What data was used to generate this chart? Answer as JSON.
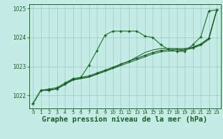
{
  "bg_color": "#c5ece4",
  "grid_color": "#9fcfca",
  "line_color_dark": "#1a5c28",
  "line_color_med": "#2e7d3c",
  "xlabel": "Graphe pression niveau de la mer (hPa)",
  "xlabel_fontsize": 7.5,
  "ylim": [
    1021.55,
    1025.15
  ],
  "xlim": [
    -0.5,
    23.5
  ],
  "yticks": [
    1022,
    1023,
    1024,
    1025
  ],
  "xticks": [
    0,
    1,
    2,
    3,
    4,
    5,
    6,
    7,
    8,
    9,
    10,
    11,
    12,
    13,
    14,
    15,
    16,
    17,
    18,
    19,
    20,
    21,
    22,
    23
  ],
  "curve1_x": [
    0,
    1,
    2,
    3,
    4,
    5,
    6,
    7,
    8,
    9,
    10,
    11,
    12,
    13,
    14,
    15,
    16,
    17,
    18,
    19,
    20,
    21,
    22,
    23
  ],
  "curve1_y": [
    1021.72,
    1022.18,
    1022.22,
    1022.27,
    1022.43,
    1022.58,
    1022.62,
    1023.05,
    1023.55,
    1024.08,
    1024.22,
    1024.22,
    1024.22,
    1024.22,
    1024.05,
    1024.0,
    1023.75,
    1023.58,
    1023.52,
    1023.52,
    1023.75,
    1024.02,
    1024.92,
    1024.95
  ],
  "curve2_x": [
    0,
    1,
    2,
    3,
    4,
    5,
    6,
    7,
    8,
    9,
    10,
    11,
    12,
    13,
    14,
    15,
    16,
    17,
    18,
    19,
    20,
    21,
    22,
    23
  ],
  "curve2_y": [
    1021.72,
    1022.18,
    1022.18,
    1022.23,
    1022.38,
    1022.57,
    1022.62,
    1022.67,
    1022.77,
    1022.87,
    1022.97,
    1023.08,
    1023.18,
    1023.28,
    1023.38,
    1023.48,
    1023.55,
    1023.58,
    1023.58,
    1023.58,
    1023.65,
    1023.77,
    1023.97,
    1024.95
  ],
  "curve3_x": [
    0,
    1,
    2,
    3,
    4,
    5,
    6,
    7,
    8,
    9,
    10,
    11,
    12,
    13,
    14,
    15,
    16,
    17,
    18,
    19,
    20,
    21,
    22,
    23
  ],
  "curve3_y": [
    1021.72,
    1022.18,
    1022.18,
    1022.23,
    1022.38,
    1022.53,
    1022.58,
    1022.63,
    1022.73,
    1022.83,
    1022.93,
    1023.03,
    1023.13,
    1023.23,
    1023.33,
    1023.43,
    1023.5,
    1023.53,
    1023.53,
    1023.57,
    1023.63,
    1023.73,
    1023.93,
    1024.95
  ],
  "curve4_x": [
    0,
    1,
    2,
    3,
    4,
    5,
    6,
    7,
    8,
    9,
    10,
    11,
    12,
    13,
    14,
    15,
    16,
    17,
    18,
    19,
    20,
    21,
    22,
    23
  ],
  "curve4_y": [
    1021.72,
    1022.18,
    1022.18,
    1022.23,
    1022.38,
    1022.53,
    1022.58,
    1022.63,
    1022.73,
    1022.83,
    1022.93,
    1023.08,
    1023.18,
    1023.33,
    1023.48,
    1023.57,
    1023.62,
    1023.63,
    1023.62,
    1023.62,
    1023.67,
    1023.78,
    1023.97,
    1024.95
  ]
}
